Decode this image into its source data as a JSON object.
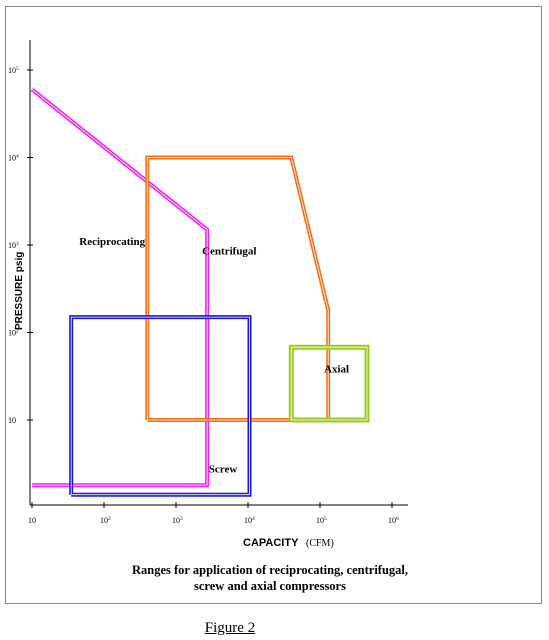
{
  "chart_data": {
    "type": "area",
    "xscale": "log",
    "yscale": "log",
    "xlabel": "CAPACITY",
    "xlabel_unit": "(CFM)",
    "ylabel": "PRESSURE  psig",
    "xlim": [
      10,
      1000000
    ],
    "ylim": [
      0.8,
      100000
    ],
    "x_ticks": [
      {
        "value": 10,
        "base": "10",
        "exp": ""
      },
      {
        "value": 100,
        "base": "10",
        "exp": "2"
      },
      {
        "value": 1000,
        "base": "10",
        "exp": "3"
      },
      {
        "value": 10000,
        "base": "10",
        "exp": "4"
      },
      {
        "value": 100000,
        "base": "10",
        "exp": "5"
      },
      {
        "value": 1000000,
        "base": "10",
        "exp": "6"
      }
    ],
    "y_ticks": [
      {
        "value": 10,
        "base": "10",
        "exp": ""
      },
      {
        "value": 100,
        "base": "10",
        "exp": "2"
      },
      {
        "value": 1000,
        "base": "10",
        "exp": "3"
      },
      {
        "value": 10000,
        "base": "10",
        "exp": "4"
      },
      {
        "value": 100000,
        "base": "10",
        "exp": "5"
      }
    ],
    "grid": false,
    "legend": "none",
    "regions": [
      {
        "name": "Reciprocating",
        "color": "#ee22ee",
        "boundary": [
          [
            10,
            60000
          ],
          [
            2700,
            1500
          ],
          [
            2700,
            1.8
          ],
          [
            10,
            1.8
          ]
        ],
        "label_at": [
          130,
          1000
        ]
      },
      {
        "name": "Centrifugal",
        "color": "#f07018",
        "boundary": [
          [
            400,
            10
          ],
          [
            400,
            10000
          ],
          [
            40000,
            10000
          ],
          [
            130000,
            180
          ],
          [
            130000,
            10
          ],
          [
            400,
            10
          ]
        ],
        "label_at": [
          5500,
          780
        ]
      },
      {
        "name": "Screw",
        "color": "#1a1acc",
        "boundary": [
          [
            35,
            1.4
          ],
          [
            35,
            150
          ],
          [
            10500,
            150
          ],
          [
            10500,
            1.4
          ],
          [
            35,
            1.4
          ]
        ],
        "label_at": [
          4500,
          2.5
        ]
      },
      {
        "name": "Axial",
        "color": "#99cc22",
        "boundary": [
          [
            40000,
            10
          ],
          [
            40000,
            68
          ],
          [
            450000,
            68
          ],
          [
            450000,
            10
          ],
          [
            40000,
            10
          ]
        ],
        "label_at": [
          170000,
          35
        ]
      }
    ]
  },
  "caption": {
    "line1": "Ranges for application of reciprocating, centrifugal,",
    "line2": "screw and axial compressors"
  },
  "figure_label": "Figure 2"
}
